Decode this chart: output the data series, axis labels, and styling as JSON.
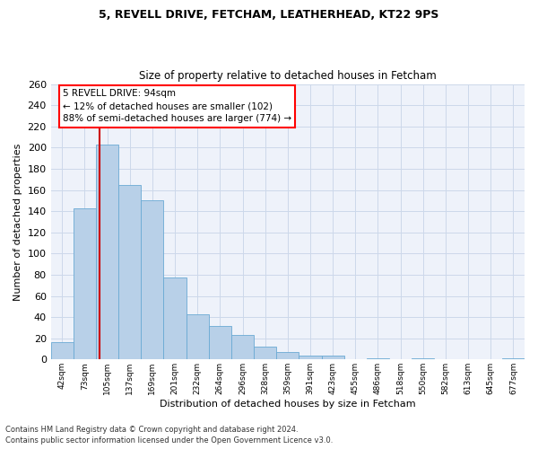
{
  "title1": "5, REVELL DRIVE, FETCHAM, LEATHERHEAD, KT22 9PS",
  "title2": "Size of property relative to detached houses in Fetcham",
  "xlabel": "Distribution of detached houses by size in Fetcham",
  "ylabel": "Number of detached properties",
  "footer1": "Contains HM Land Registry data © Crown copyright and database right 2024.",
  "footer2": "Contains public sector information licensed under the Open Government Licence v3.0.",
  "annotation_line1": "5 REVELL DRIVE: 94sqm",
  "annotation_line2": "← 12% of detached houses are smaller (102)",
  "annotation_line3": "88% of semi-detached houses are larger (774) →",
  "bar_labels": [
    "42sqm",
    "73sqm",
    "105sqm",
    "137sqm",
    "169sqm",
    "201sqm",
    "232sqm",
    "264sqm",
    "296sqm",
    "328sqm",
    "359sqm",
    "391sqm",
    "423sqm",
    "455sqm",
    "486sqm",
    "518sqm",
    "550sqm",
    "582sqm",
    "613sqm",
    "645sqm",
    "677sqm"
  ],
  "bar_values": [
    16,
    143,
    203,
    165,
    150,
    77,
    43,
    32,
    23,
    12,
    7,
    4,
    4,
    0,
    1,
    0,
    1,
    0,
    0,
    0,
    1
  ],
  "bar_color": "#b8d0e8",
  "bar_edge_color": "#6aaad4",
  "ylim": [
    0,
    260
  ],
  "yticks": [
    0,
    20,
    40,
    60,
    80,
    100,
    120,
    140,
    160,
    180,
    200,
    220,
    240,
    260
  ],
  "grid_color": "#ccd8ea",
  "bg_color": "#eef2fa",
  "red_line_color": "#cc0000",
  "title1_fontsize": 9,
  "title2_fontsize": 8.5,
  "ylabel_fontsize": 8,
  "xlabel_fontsize": 8,
  "ytick_fontsize": 8,
  "xtick_fontsize": 6.5,
  "footer_fontsize": 6,
  "ann_fontsize": 7.5
}
